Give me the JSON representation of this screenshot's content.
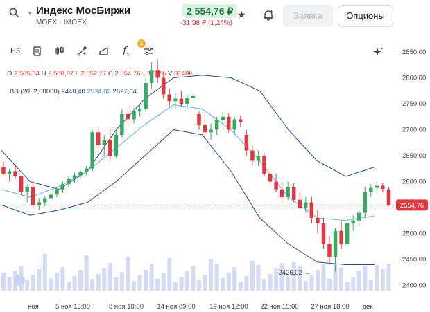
{
  "header": {
    "title": "Индекс МосБиржи",
    "subtitle": "MOEX · IMOEX",
    "price": "2 554,76 ₽",
    "change": "-31,98 ₽ (1,24%)",
    "order_button": "Заявка",
    "options_button": "Опционы"
  },
  "toolbar": {
    "timeframe": "Н3",
    "indicator_badge": "1"
  },
  "ohlc": {
    "o_label": "O",
    "o": "2 585,34",
    "h_label": "H",
    "h": "2 588,87",
    "l_label": "L",
    "l": "2 552,77",
    "c_label": "C",
    "c": "2 554,76",
    "pct": "↓ 1,18%",
    "v_label": "V",
    "v": "8148k"
  },
  "bb": {
    "label": "BB",
    "params": "(20, 2,00000)",
    "lower": "2440,40",
    "middle": "2534,02",
    "upper": "2627,64"
  },
  "colors": {
    "up": "#3aa865",
    "down": "#e0383e",
    "band_outer": "#2c4a7e",
    "band_mid": "#6ab4e8",
    "volume": "#c9d2f0"
  },
  "chart_data": {
    "type": "candlestick",
    "y_ticks": [
      "2850,00",
      "2800,00",
      "2750,00",
      "2700,00",
      "2650,00",
      "2600,00",
      "2550,00",
      "2500,00",
      "2450,00",
      "2400,00"
    ],
    "ylim": [
      2390,
      2870
    ],
    "x_ticks": [
      "ноя",
      "5 ноя 15:00",
      "8 ноя 18:00",
      "14 ноя 09:00",
      "19 ноя 12:00",
      "22 ноя 15:00",
      "27 ноя 18:00",
      "дек"
    ],
    "last_price_label": "2554,76",
    "min_label": "2426,02",
    "candles": [
      [
        2628,
        2638,
        2612,
        2615
      ],
      [
        2615,
        2625,
        2600,
        2620
      ],
      [
        2620,
        2630,
        2605,
        2610
      ],
      [
        2610,
        2612,
        2575,
        2580
      ],
      [
        2580,
        2595,
        2560,
        2590
      ],
      [
        2590,
        2598,
        2550,
        2555
      ],
      [
        2555,
        2568,
        2545,
        2560
      ],
      [
        2560,
        2572,
        2552,
        2568
      ],
      [
        2568,
        2580,
        2560,
        2575
      ],
      [
        2575,
        2590,
        2570,
        2585
      ],
      [
        2585,
        2600,
        2578,
        2595
      ],
      [
        2595,
        2610,
        2590,
        2605
      ],
      [
        2605,
        2618,
        2598,
        2612
      ],
      [
        2612,
        2622,
        2606,
        2618
      ],
      [
        2618,
        2630,
        2612,
        2625
      ],
      [
        2625,
        2700,
        2620,
        2695
      ],
      [
        2695,
        2705,
        2660,
        2670
      ],
      [
        2670,
        2690,
        2650,
        2680
      ],
      [
        2680,
        2700,
        2640,
        2650
      ],
      [
        2650,
        2700,
        2645,
        2690
      ],
      [
        2690,
        2740,
        2685,
        2730
      ],
      [
        2730,
        2745,
        2710,
        2720
      ],
      [
        2720,
        2742,
        2712,
        2735
      ],
      [
        2735,
        2750,
        2725,
        2740
      ],
      [
        2740,
        2800,
        2735,
        2790
      ],
      [
        2790,
        2830,
        2780,
        2815
      ],
      [
        2815,
        2835,
        2790,
        2800
      ],
      [
        2800,
        2812,
        2760,
        2768
      ],
      [
        2768,
        2780,
        2745,
        2755
      ],
      [
        2755,
        2770,
        2740,
        2760
      ],
      [
        2760,
        2775,
        2745,
        2750
      ],
      [
        2750,
        2768,
        2740,
        2762
      ],
      [
        2762,
        2770,
        2752,
        2765
      ],
      [
        2730,
        2735,
        2700,
        2710
      ],
      [
        2710,
        2720,
        2685,
        2695
      ],
      [
        2695,
        2712,
        2680,
        2700
      ],
      [
        2700,
        2725,
        2690,
        2718
      ],
      [
        2718,
        2735,
        2710,
        2725
      ],
      [
        2725,
        2732,
        2695,
        2700
      ],
      [
        2700,
        2725,
        2690,
        2720
      ],
      [
        2720,
        2728,
        2705,
        2715
      ],
      [
        2690,
        2700,
        2650,
        2660
      ],
      [
        2660,
        2670,
        2630,
        2640
      ],
      [
        2640,
        2660,
        2630,
        2650
      ],
      [
        2650,
        2655,
        2610,
        2615
      ],
      [
        2615,
        2625,
        2590,
        2600
      ],
      [
        2600,
        2615,
        2580,
        2585
      ],
      [
        2585,
        2600,
        2560,
        2570
      ],
      [
        2570,
        2600,
        2565,
        2590
      ],
      [
        2590,
        2598,
        2560,
        2565
      ],
      [
        2565,
        2580,
        2545,
        2550
      ],
      [
        2550,
        2570,
        2540,
        2560
      ],
      [
        2560,
        2570,
        2520,
        2530
      ],
      [
        2530,
        2545,
        2500,
        2520
      ],
      [
        2520,
        2530,
        2470,
        2480
      ],
      [
        2480,
        2495,
        2440,
        2455
      ],
      [
        2455,
        2510,
        2426,
        2505
      ],
      [
        2505,
        2525,
        2470,
        2480
      ],
      [
        2480,
        2530,
        2475,
        2520
      ],
      [
        2520,
        2535,
        2505,
        2525
      ],
      [
        2525,
        2545,
        2515,
        2540
      ],
      [
        2540,
        2590,
        2530,
        2580
      ],
      [
        2580,
        2595,
        2570,
        2588
      ],
      [
        2588,
        2600,
        2578,
        2592
      ],
      [
        2592,
        2598,
        2580,
        2586
      ],
      [
        2585,
        2589,
        2553,
        2555
      ]
    ],
    "bb_upper": [
      2660,
      2600,
      2585,
      2620,
      2700,
      2760,
      2800,
      2805,
      2800,
      2775,
      2700,
      2640,
      2610,
      2628
    ],
    "bb_middle": [
      2585,
      2570,
      2590,
      2620,
      2665,
      2710,
      2748,
      2740,
      2700,
      2640,
      2570,
      2530,
      2525,
      2534
    ],
    "bb_lower": [
      2555,
      2535,
      2545,
      2560,
      2600,
      2650,
      2700,
      2690,
      2620,
      2530,
      2480,
      2445,
      2440,
      2440
    ]
  }
}
